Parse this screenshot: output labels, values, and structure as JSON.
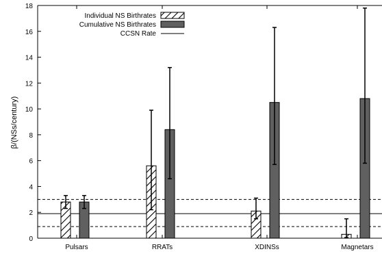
{
  "chart_data": {
    "type": "bar",
    "ylabel": "β/(NSs/century)",
    "xlabel": "",
    "categories": [
      "Pulsars",
      "RRATs",
      "XDINSs",
      "Magnetars"
    ],
    "ylim": [
      0,
      18
    ],
    "yticks": [
      "0",
      "2",
      "4",
      "6",
      "8",
      "10",
      "12",
      "14",
      "16",
      "18"
    ],
    "grid": false,
    "legend_position": "top-left",
    "series": [
      {
        "name": "Individual NS Birthrates",
        "style": "hatched",
        "color": "#000000",
        "values": [
          2.8,
          5.6,
          2.1,
          0.3
        ],
        "err_low": [
          2.3,
          2.2,
          1.5,
          0.05
        ],
        "err_high": [
          3.3,
          9.9,
          3.1,
          1.5
        ]
      },
      {
        "name": "Cumulative NS Birthrates",
        "style": "solid",
        "color": "#606060",
        "values": [
          2.8,
          8.4,
          10.5,
          10.8
        ],
        "err_low": [
          2.3,
          4.6,
          5.7,
          5.8
        ],
        "err_high": [
          3.3,
          13.2,
          16.3,
          17.8
        ]
      }
    ],
    "reference_line": {
      "name": "CCSN Rate",
      "value": 1.9,
      "low": 0.9,
      "high": 3.0
    }
  }
}
